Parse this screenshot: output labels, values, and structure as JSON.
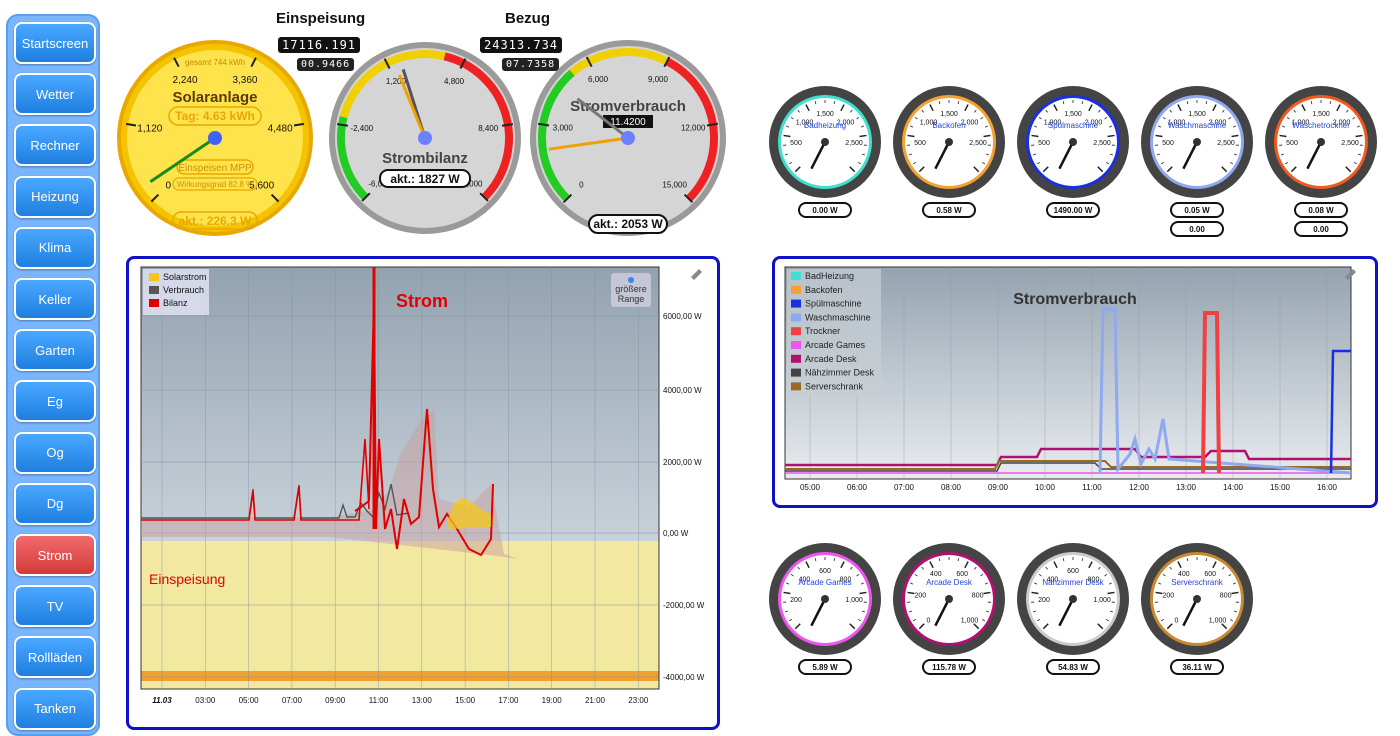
{
  "nav": [
    {
      "label": "Startscreen"
    },
    {
      "label": "Wetter"
    },
    {
      "label": "Rechner"
    },
    {
      "label": "Heizung"
    },
    {
      "label": "Klima"
    },
    {
      "label": "Keller"
    },
    {
      "label": "Garten"
    },
    {
      "label": "Eg"
    },
    {
      "label": "Og"
    },
    {
      "label": "Dg"
    },
    {
      "label": "Strom",
      "active": true
    },
    {
      "label": "TV"
    },
    {
      "label": "Rollläden"
    },
    {
      "label": "Tanken"
    }
  ],
  "top": {
    "einspeisung_title": "Einspeisung",
    "einspeisung_counter": "17116.191",
    "einspeisung_sub": "00.9466",
    "bezug_title": "Bezug",
    "bezug_counter": "24313.734",
    "bezug_sub": "07.7358"
  },
  "solar": {
    "title": "Solaranlage",
    "gesamt": "gesamt 744 kWh",
    "tag": "Tag: 4.63 kWh",
    "mode": "Einspeisen MPP",
    "wirkungsgrad": "Wirkungsgrad 82.8 %",
    "akt": "akt.: 226.3 W",
    "ticks": [
      "0",
      "1,120",
      "2,240",
      "3,360",
      "4,480",
      "5,600"
    ],
    "value": 226.3,
    "max": 5600
  },
  "bilanz": {
    "title": "Strombilanz",
    "akt": "akt.: 1827 W",
    "ticks": [
      "-6,000",
      "-2,400",
      "1,200",
      "4,800",
      "8,400",
      "12,000"
    ],
    "value": 1827
  },
  "verbrauch": {
    "title": "Stromverbrauch",
    "digital": "11.4200",
    "akt": "akt.: 2053 W",
    "ticks": [
      "0",
      "3,000",
      "6,000",
      "9,000",
      "12,000",
      "15,000"
    ],
    "value": 2053
  },
  "small_gauges_top": [
    {
      "name": "Badheizung",
      "color": "#3fe0d0",
      "value": "0.00 W",
      "ticks": [
        "500",
        "1,000",
        "1,500",
        "2,000",
        "2,500"
      ]
    },
    {
      "name": "Backofen",
      "color": "#f5a030",
      "value": "0.58 W",
      "ticks": [
        "500",
        "1,000",
        "1,500",
        "2,000",
        "2,500"
      ]
    },
    {
      "name": "Spülmaschine",
      "color": "#1a2fe0",
      "value": "1490.00 W",
      "ticks": [
        "500",
        "1,000",
        "1,500",
        "2,000",
        "2,500"
      ]
    },
    {
      "name": "Waschmaschine",
      "color": "#8fa8f0",
      "value": "0.05 W",
      "extra": "0.00",
      "ticks": [
        "500",
        "1,000",
        "1,500",
        "2,000",
        "2,500"
      ]
    },
    {
      "name": "Wäschetrockner",
      "color": "#f05a20",
      "value": "0.08 W",
      "extra": "0.00",
      "ticks": [
        "500",
        "1,000",
        "1,500",
        "2,000",
        "2,500"
      ]
    }
  ],
  "small_gauges_bottom": [
    {
      "name": "Arcade Games",
      "color": "#ee55ee",
      "value": "5.89 W",
      "ticks": [
        "200",
        "400",
        "600",
        "800",
        "1,000"
      ]
    },
    {
      "name": "Arcade Desk",
      "color": "#b01070",
      "value": "115.78 W",
      "ticks": [
        "0",
        "200",
        "400",
        "600",
        "800",
        "1,000"
      ]
    },
    {
      "name": "Nähzimmer Desk",
      "color": "#cccccc",
      "value": "54.83 W",
      "ticks": [
        "200",
        "400",
        "600",
        "800",
        "1,000"
      ]
    },
    {
      "name": "Serverschrank",
      "color": "#c88a30",
      "value": "36.11 W",
      "ticks": [
        "0",
        "200",
        "400",
        "600",
        "800",
        "1,000"
      ]
    }
  ],
  "strom_chart": {
    "title": "Strom",
    "legend": [
      "Solarstrom",
      "Verbrauch",
      "Bilanz"
    ],
    "legend_colors": [
      "#f5c518",
      "#555555",
      "#e00000"
    ],
    "range_btn": "größere Range",
    "einspeisung_label": "Einspeisung",
    "y_ticks": [
      "6000,00 W",
      "4000,00 W",
      "2000,00 W",
      "0,00 W",
      "-2000,00 W",
      "-4000,00 W"
    ],
    "x_ticks": [
      "11.03",
      "03:00",
      "05:00",
      "07:00",
      "09:00",
      "11:00",
      "13:00",
      "15:00",
      "17:00",
      "19:00",
      "21:00",
      "23:00"
    ]
  },
  "verbrauch_chart": {
    "title": "Stromverbrauch",
    "legend": [
      "BadHeizung",
      "Backofen",
      "Spülmaschine",
      "Waschmaschine",
      "Trockner",
      "Arcade Games",
      "Arcade Desk",
      "Nähzimmer Desk",
      "Serverschrank"
    ],
    "legend_colors": [
      "#3fe0d0",
      "#f5a030",
      "#1a2fe0",
      "#8fa8f0",
      "#f04040",
      "#ee55ee",
      "#b01070",
      "#444444",
      "#9a6a20"
    ],
    "x_ticks": [
      "05:00",
      "06:00",
      "07:00",
      "08:00",
      "09:00",
      "10:00",
      "11:00",
      "12:00",
      "13:00",
      "14:00",
      "15:00",
      "16:00"
    ]
  }
}
